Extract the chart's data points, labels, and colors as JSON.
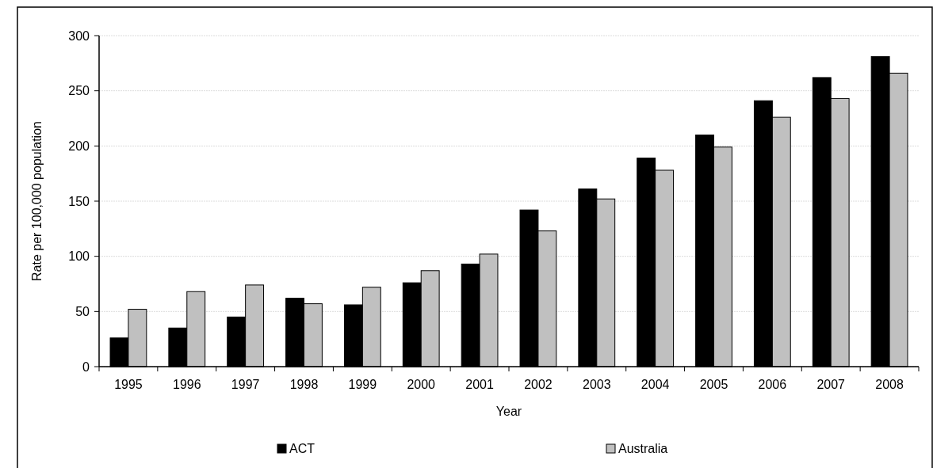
{
  "chart_data": {
    "type": "bar",
    "xlabel": "Year",
    "ylabel": "Rate per 100,000 population",
    "categories": [
      "1995",
      "1996",
      "1997",
      "1998",
      "1999",
      "2000",
      "2001",
      "2002",
      "2003",
      "2004",
      "2005",
      "2006",
      "2007",
      "2008"
    ],
    "series": [
      {
        "name": "ACT",
        "color": "#000000",
        "values": [
          26,
          35,
          45,
          62,
          56,
          76,
          93,
          142,
          161,
          189,
          210,
          241,
          262,
          281
        ]
      },
      {
        "name": "Australia",
        "color": "#c0c0c0",
        "values": [
          52,
          68,
          74,
          57,
          72,
          87,
          102,
          123,
          152,
          178,
          199,
          226,
          243,
          266
        ]
      }
    ],
    "ylim": [
      0,
      300
    ],
    "yticks": [
      0,
      50,
      100,
      150,
      200,
      250,
      300
    ],
    "grid": "y",
    "legend": "bottom"
  }
}
